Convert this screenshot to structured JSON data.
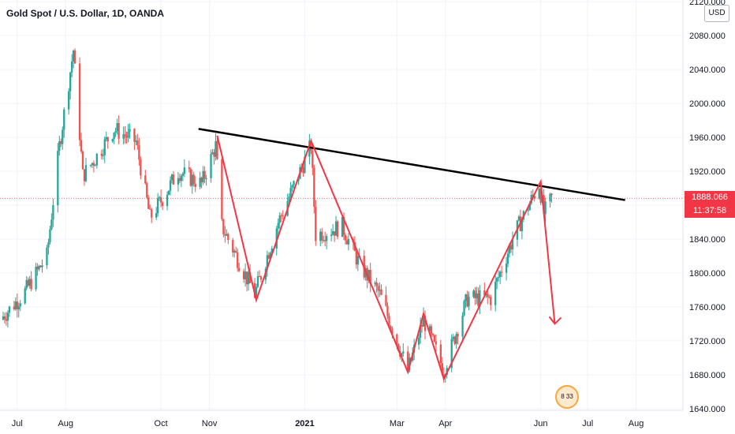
{
  "header": {
    "title": "Gold Spot / U.S. Dollar, 1D, OANDA",
    "currency": "USD"
  },
  "price_scale": {
    "last_price": "1888.066",
    "countdown": "11:37:58",
    "tag_color": "#f23645"
  },
  "badge": {
    "text": "8 33"
  },
  "colors": {
    "up": "#26a69a",
    "down": "#ef5350",
    "drawing_red": "#f23645",
    "trendline": "#000000",
    "grid": "#f0f3fa"
  },
  "chart_data": {
    "type": "candlestick",
    "title": "Gold Spot / U.S. Dollar, 1D, OANDA",
    "y_axis": {
      "ticks": [
        "2120.000",
        "2080.000",
        "2040.000",
        "2000.000",
        "1960.000",
        "1920.000",
        "1880.000",
        "1840.000",
        "1800.000",
        "1760.000",
        "1720.000",
        "1680.000",
        "1640.000"
      ],
      "tick_values": [
        2120,
        2080,
        2040,
        2000,
        1960,
        1920,
        1880,
        1840,
        1800,
        1760,
        1720,
        1680,
        1640
      ],
      "ylim": [
        1638,
        2122
      ]
    },
    "x_axis": {
      "ticks": [
        "Jul",
        "Aug",
        "Oct",
        "Nov",
        "2021",
        "Mar",
        "Apr",
        "Jun",
        "Jul",
        "Aug"
      ],
      "tick_dates": [
        "2020-07-01",
        "2020-08-01",
        "2020-10-01",
        "2020-11-01",
        "2021-01-01",
        "2021-03-01",
        "2021-04-01",
        "2021-06-01",
        "2021-07-01",
        "2021-08-01"
      ],
      "xlim": [
        "2020-06-20",
        "2021-08-31"
      ]
    },
    "grid": true,
    "last_price": 1888.066,
    "candles_approx": [
      {
        "date": "2020-06-20",
        "close": 1745
      },
      {
        "date": "2020-07-05",
        "close": 1775
      },
      {
        "date": "2020-07-20",
        "close": 1820
      },
      {
        "date": "2020-07-28",
        "close": 1950
      },
      {
        "date": "2020-08-06",
        "close": 2063
      },
      {
        "date": "2020-08-12",
        "close": 1915
      },
      {
        "date": "2020-08-20",
        "close": 1935
      },
      {
        "date": "2020-09-01",
        "close": 1970
      },
      {
        "date": "2020-09-15",
        "close": 1955
      },
      {
        "date": "2020-09-24",
        "close": 1865
      },
      {
        "date": "2020-10-01",
        "close": 1885
      },
      {
        "date": "2020-10-12",
        "close": 1920
      },
      {
        "date": "2020-10-27",
        "close": 1905
      },
      {
        "date": "2020-11-05",
        "close": 1950
      },
      {
        "date": "2020-11-09",
        "close": 1855
      },
      {
        "date": "2020-11-30",
        "close": 1775
      },
      {
        "date": "2020-12-15",
        "close": 1860
      },
      {
        "date": "2021-01-05",
        "close": 1950
      },
      {
        "date": "2021-01-08",
        "close": 1845
      },
      {
        "date": "2021-01-25",
        "close": 1855
      },
      {
        "date": "2021-02-05",
        "close": 1810
      },
      {
        "date": "2021-02-18",
        "close": 1775
      },
      {
        "date": "2021-03-08",
        "close": 1685
      },
      {
        "date": "2021-03-18",
        "close": 1745
      },
      {
        "date": "2021-03-31",
        "close": 1685
      },
      {
        "date": "2021-04-15",
        "close": 1770
      },
      {
        "date": "2021-04-30",
        "close": 1770
      },
      {
        "date": "2021-05-15",
        "close": 1845
      },
      {
        "date": "2021-05-31",
        "close": 1905
      },
      {
        "date": "2021-06-03",
        "close": 1870
      },
      {
        "date": "2021-06-08",
        "close": 1888
      }
    ],
    "drawings": [
      {
        "type": "trendline",
        "points": [
          {
            "date": "2020-10-25",
            "price": 1970
          },
          {
            "date": "2021-07-25",
            "price": 1886
          }
        ]
      },
      {
        "type": "zigzag",
        "points": [
          {
            "date": "2020-11-06",
            "price": 1962
          },
          {
            "date": "2020-12-01",
            "price": 1768
          },
          {
            "date": "2021-01-05",
            "price": 1956
          },
          {
            "date": "2021-03-08",
            "price": 1683
          },
          {
            "date": "2021-03-18",
            "price": 1752
          },
          {
            "date": "2021-03-31",
            "price": 1675
          },
          {
            "date": "2021-06-01",
            "price": 1908
          },
          {
            "date": "2021-06-10",
            "price": 1740
          }
        ]
      }
    ]
  }
}
